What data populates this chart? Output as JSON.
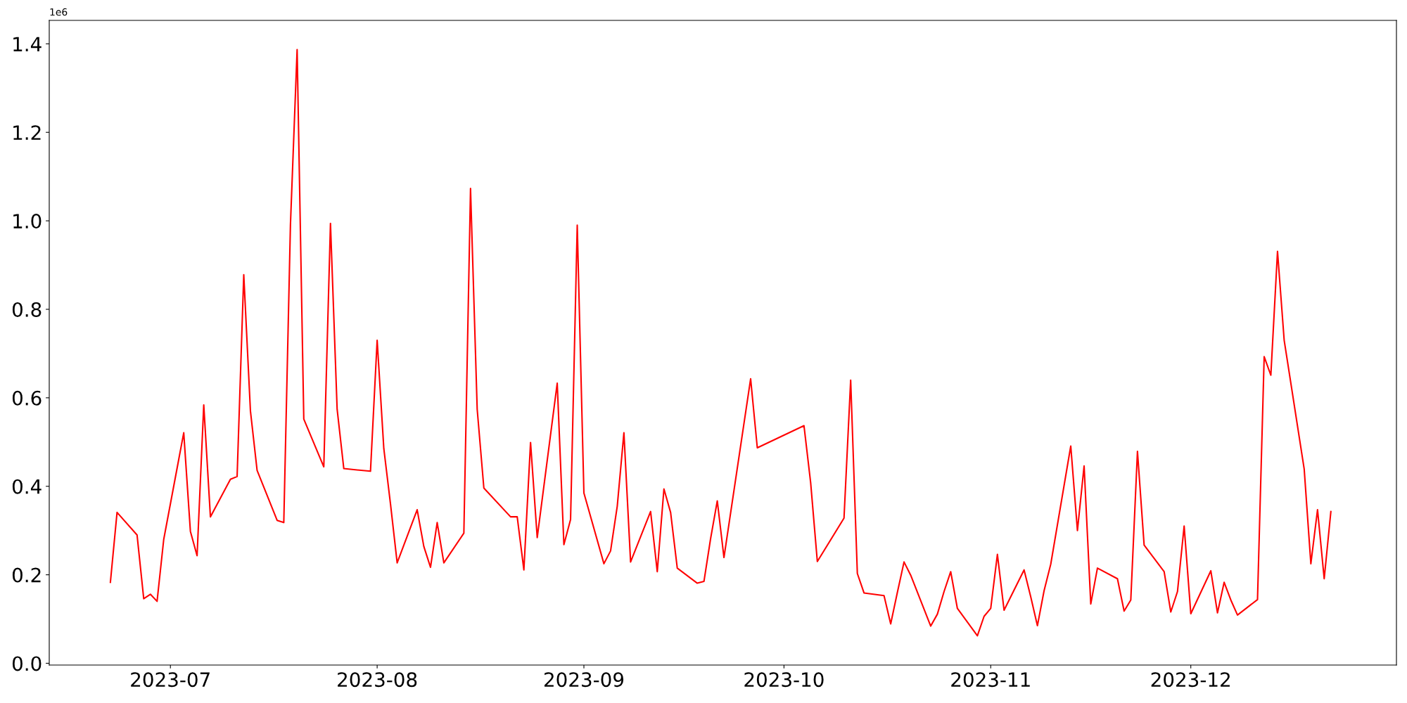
{
  "chart_data": {
    "type": "line",
    "annotations": [
      "1e6"
    ],
    "x": [
      "2023-06-22",
      "2023-06-23",
      "2023-06-26",
      "2023-06-27",
      "2023-06-28",
      "2023-06-29",
      "2023-06-30",
      "2023-07-03",
      "2023-07-04",
      "2023-07-05",
      "2023-07-06",
      "2023-07-07",
      "2023-07-10",
      "2023-07-11",
      "2023-07-12",
      "2023-07-13",
      "2023-07-14",
      "2023-07-17",
      "2023-07-18",
      "2023-07-19",
      "2023-07-20",
      "2023-07-21",
      "2023-07-24",
      "2023-07-25",
      "2023-07-26",
      "2023-07-27",
      "2023-07-31",
      "2023-08-01",
      "2023-08-02",
      "2023-08-03",
      "2023-08-04",
      "2023-08-07",
      "2023-08-08",
      "2023-08-09",
      "2023-08-10",
      "2023-08-11",
      "2023-08-14",
      "2023-08-15",
      "2023-08-16",
      "2023-08-17",
      "2023-08-21",
      "2023-08-22",
      "2023-08-23",
      "2023-08-24",
      "2023-08-25",
      "2023-08-28",
      "2023-08-29",
      "2023-08-30",
      "2023-08-31",
      "2023-09-01",
      "2023-09-04",
      "2023-09-05",
      "2023-09-06",
      "2023-09-07",
      "2023-09-08",
      "2023-09-11",
      "2023-09-12",
      "2023-09-13",
      "2023-09-14",
      "2023-09-15",
      "2023-09-18",
      "2023-09-19",
      "2023-09-20",
      "2023-09-21",
      "2023-09-22",
      "2023-09-26",
      "2023-09-27",
      "2023-10-04",
      "2023-10-05",
      "2023-10-06",
      "2023-10-10",
      "2023-10-11",
      "2023-10-12",
      "2023-10-13",
      "2023-10-16",
      "2023-10-17",
      "2023-10-18",
      "2023-10-19",
      "2023-10-20",
      "2023-10-23",
      "2023-10-24",
      "2023-10-25",
      "2023-10-26",
      "2023-10-27",
      "2023-10-30",
      "2023-10-31",
      "2023-11-01",
      "2023-11-02",
      "2023-11-03",
      "2023-11-06",
      "2023-11-07",
      "2023-11-08",
      "2023-11-09",
      "2023-11-10",
      "2023-11-13",
      "2023-11-14",
      "2023-11-15",
      "2023-11-16",
      "2023-11-17",
      "2023-11-20",
      "2023-11-21",
      "2023-11-22",
      "2023-11-23",
      "2023-11-24",
      "2023-11-27",
      "2023-11-28",
      "2023-11-29",
      "2023-11-30",
      "2023-12-01",
      "2023-12-04",
      "2023-12-05",
      "2023-12-06",
      "2023-12-07",
      "2023-12-08",
      "2023-12-11",
      "2023-12-12",
      "2023-12-13",
      "2023-12-14",
      "2023-12-15",
      "2023-12-18",
      "2023-12-19",
      "2023-12-20",
      "2023-12-21",
      "2023-12-22"
    ],
    "series": [
      {
        "color": "#ff0000",
        "values": [
          0.183,
          0.341,
          0.29,
          0.146,
          0.156,
          0.14,
          0.28,
          0.521,
          0.298,
          0.243,
          0.584,
          0.331,
          0.416,
          0.422,
          0.878,
          0.57,
          0.436,
          0.323,
          0.318,
          0.992,
          1.387,
          0.552,
          0.444,
          0.994,
          0.574,
          0.44,
          0.434,
          0.73,
          0.485,
          0.36,
          0.227,
          0.347,
          0.264,
          0.217,
          0.318,
          0.227,
          0.294,
          1.073,
          0.574,
          0.396,
          0.331,
          0.331,
          0.211,
          0.499,
          0.284,
          0.633,
          0.268,
          0.325,
          0.99,
          0.385,
          0.225,
          0.254,
          0.355,
          0.521,
          0.229,
          0.343,
          0.207,
          0.394,
          0.341,
          0.215,
          0.181,
          0.185,
          0.282,
          0.367,
          0.239,
          0.643,
          0.487,
          0.537,
          0.408,
          0.23,
          0.328,
          0.64,
          0.203,
          0.159,
          0.153,
          0.089,
          0.16,
          0.229,
          0.199,
          0.084,
          0.111,
          0.162,
          0.207,
          0.124,
          0.062,
          0.106,
          0.124,
          0.246,
          0.12,
          0.211,
          0.15,
          0.085,
          0.164,
          0.224,
          0.491,
          0.3,
          0.446,
          0.134,
          0.215,
          0.191,
          0.118,
          0.143,
          0.479,
          0.267,
          0.207,
          0.116,
          0.162,
          0.31,
          0.112,
          0.209,
          0.114,
          0.183,
          0.143,
          0.109,
          0.144,
          0.693,
          0.651,
          0.931,
          0.73,
          0.439,
          0.225,
          0.347,
          0.191,
          0.343
        ]
      }
    ],
    "xlim": [
      "2023-06-12T20:00",
      "2023-12-31T20:00"
    ],
    "xticks": [
      {
        "value": "2023-07-01",
        "label": "2023-07"
      },
      {
        "value": "2023-08-01",
        "label": "2023-08"
      },
      {
        "value": "2023-09-01",
        "label": "2023-09"
      },
      {
        "value": "2023-10-01",
        "label": "2023-10"
      },
      {
        "value": "2023-11-01",
        "label": "2023-11"
      },
      {
        "value": "2023-12-01",
        "label": "2023-12"
      }
    ],
    "ylim": [
      -0.004,
      1.453
    ],
    "yticks": [
      {
        "value": 0,
        "label": "0.0"
      },
      0.2,
      0.4,
      0.6,
      0.8,
      {
        "value": 1,
        "label": "1.0"
      },
      1.2,
      1.4
    ],
    "grid": false,
    "marker": "none",
    "line_style": "solid"
  }
}
